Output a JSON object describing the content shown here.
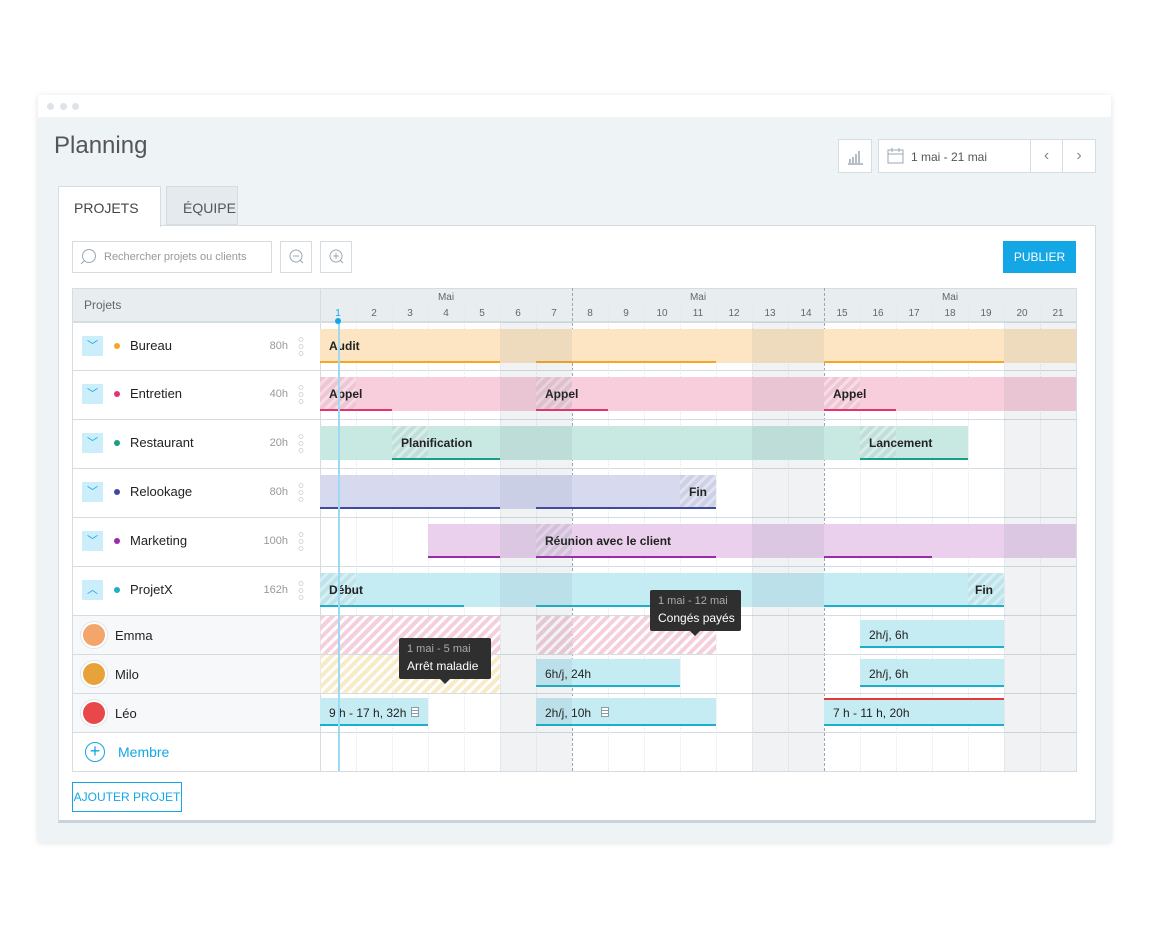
{
  "header": {
    "title": "Planning",
    "date_range": "1 mai - 21 mai"
  },
  "tabs": [
    "PROJETS",
    "ÉQUIPE"
  ],
  "search_placeholder": "Rechercher projets ou clients",
  "publish": "PUBLIER",
  "grid": {
    "column_header": "Projets",
    "months": [
      "Mai",
      "Mai",
      "Mai"
    ],
    "days": [
      1,
      2,
      3,
      4,
      5,
      6,
      7,
      8,
      9,
      10,
      11,
      12,
      13,
      14,
      15,
      16,
      17,
      18,
      19,
      20,
      21
    ]
  },
  "projects": [
    {
      "name": "Bureau",
      "hours": "80h",
      "labels": [
        "Audit"
      ]
    },
    {
      "name": "Entretien",
      "hours": "40h",
      "labels": [
        "Appel",
        "Appel",
        "Appel"
      ]
    },
    {
      "name": "Restaurant",
      "hours": "20h",
      "labels": [
        "Planification",
        "Lancement"
      ]
    },
    {
      "name": "Relookage",
      "hours": "80h",
      "labels": [
        "Fin"
      ]
    },
    {
      "name": "Marketing",
      "hours": "100h",
      "labels": [
        "Réunion avec le client"
      ]
    },
    {
      "name": "ProjetX",
      "hours": "162h",
      "labels": [
        "Début",
        "Fin"
      ]
    }
  ],
  "members": [
    {
      "name": "Emma",
      "bookings": [
        "2h/j, 6h"
      ]
    },
    {
      "name": "Milo",
      "bookings": [
        "6h/j, 24h",
        "2h/j, 6h"
      ]
    },
    {
      "name": "Léo",
      "bookings": [
        "9 h - 17 h, 32h",
        "2h/j, 10h",
        "7 h - 11 h, 20h"
      ]
    }
  ],
  "add_member": "Membre",
  "tooltips": [
    {
      "dates": "1 mai - 5 mai",
      "label": "Arrêt maladie"
    },
    {
      "dates": "1 mai - 12 mai",
      "label": "Congés payés"
    }
  ],
  "add_project": "AJOUTER PROJET"
}
